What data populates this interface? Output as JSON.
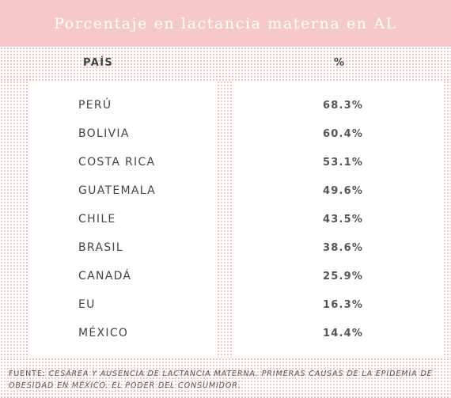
{
  "chart_data": {
    "type": "table",
    "title": "Porcentaje en lactancia materna en AL",
    "columns": [
      "PAÍS",
      "%"
    ],
    "rows": [
      {
        "country": "PERÚ",
        "value": "68.3%"
      },
      {
        "country": "BOLIVIA",
        "value": "60.4%"
      },
      {
        "country": "COSTA RICA",
        "value": "53.1%"
      },
      {
        "country": "GUATEMALA",
        "value": "49.6%"
      },
      {
        "country": "CHILE",
        "value": "43.5%"
      },
      {
        "country": "BRASIL",
        "value": "38.6%"
      },
      {
        "country": "CANADÁ",
        "value": "25.9%"
      },
      {
        "country": "EU",
        "value": "16.3%"
      },
      {
        "country": "MÉXICO",
        "value": "14.4%"
      }
    ]
  },
  "footer": {
    "source_label": "FUENTE:",
    "source_text": "CESÁREA Y AUSENCIA DE LACTANCIA MATERNA. PRIMERAS CAUSAS DE LA EPIDEMIA DE OBESIDAD EN MÉXICO. EL PODER DEL CONSUMIDOR."
  },
  "colors": {
    "title_background": "#f7c8c8",
    "dot_pattern": "#f2b3b3",
    "text": "#444444"
  }
}
